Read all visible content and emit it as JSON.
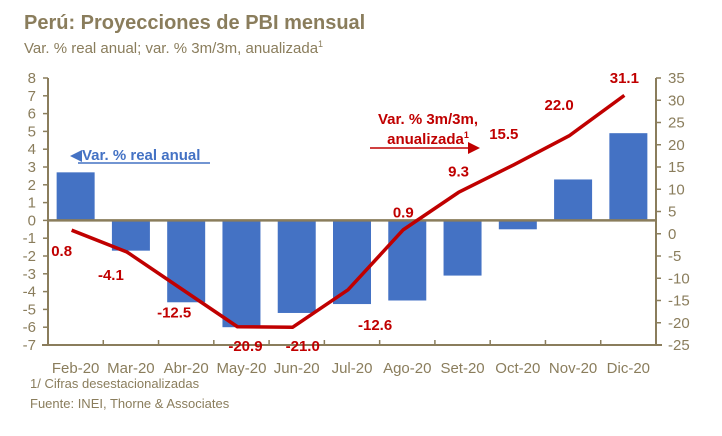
{
  "title": "Perú: Proyecciones de PBI mensual",
  "subtitle": "Var. % real anual; var. % 3m/3m, anualizada",
  "subtitle_sup": "1",
  "footnote": "1/ Cifras desestacionalizadas",
  "source": "Fuente: INEI, Thorne & Associates",
  "chart_data": {
    "type": "bar",
    "title": "Perú: Proyecciones de PBI mensual",
    "categories": [
      "Feb-20",
      "Mar-20",
      "Abr-20",
      "May-20",
      "Jun-20",
      "Jul-20",
      "Ago-20",
      "Set-20",
      "Oct-20",
      "Nov-20",
      "Dic-20"
    ],
    "series": [
      {
        "name": "Var. % real anual",
        "type": "bar",
        "axis": "left",
        "color": "#4472c4",
        "values": [
          2.7,
          -1.7,
          -4.6,
          -6.0,
          -5.2,
          -4.7,
          -4.5,
          -3.1,
          -0.5,
          2.3,
          4.9
        ]
      },
      {
        "name": "Var. % 3m/3m, anualizada",
        "type": "line",
        "axis": "right",
        "color": "#c00000",
        "values": [
          0.8,
          -4.1,
          -12.5,
          -20.9,
          -21.0,
          -12.6,
          0.9,
          9.3,
          15.5,
          22.0,
          31.1
        ],
        "labels": [
          "0.8",
          "-4.1",
          "-12.5",
          "-20.9",
          "-21.0",
          "-12.6",
          "0.9",
          "9.3",
          "15.5",
          "22.0",
          "31.1"
        ]
      }
    ],
    "y_left": {
      "ylim": [
        -7,
        8
      ],
      "ticks": [
        "8",
        "7",
        "6",
        "5",
        "4",
        "3",
        "2",
        "1",
        "0",
        "-1",
        "-2",
        "-3",
        "-4",
        "-5",
        "-6",
        "-7"
      ]
    },
    "y_right": {
      "ylim": [
        -25,
        35
      ],
      "ticks": [
        "35",
        "30",
        "25",
        "20",
        "15",
        "10",
        "5",
        "0",
        "-5",
        "-10",
        "-15",
        "-20",
        "-25"
      ]
    },
    "annotations": [
      {
        "text": "Var. % real anual",
        "color": "#4472c4",
        "arrow": "left"
      },
      {
        "text_line1": "Var. % 3m/3m,",
        "text_line2": "anualizada",
        "sup": "1",
        "color": "#c00000",
        "arrow": "right"
      }
    ],
    "grid": false,
    "legend": "none"
  }
}
